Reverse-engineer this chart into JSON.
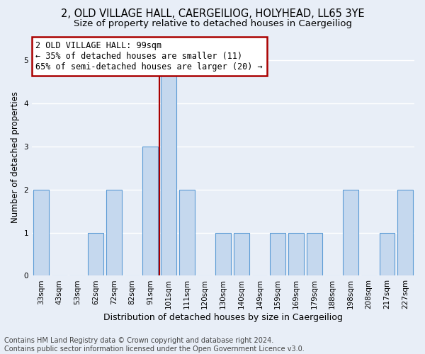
{
  "title1": "2, OLD VILLAGE HALL, CAERGEILIOG, HOLYHEAD, LL65 3YE",
  "title2": "Size of property relative to detached houses in Caergeiliog",
  "xlabel": "Distribution of detached houses by size in Caergeiliog",
  "ylabel": "Number of detached properties",
  "footnote": "Contains HM Land Registry data © Crown copyright and database right 2024.\nContains public sector information licensed under the Open Government Licence v3.0.",
  "categories": [
    "33sqm",
    "43sqm",
    "53sqm",
    "62sqm",
    "72sqm",
    "82sqm",
    "91sqm",
    "101sqm",
    "111sqm",
    "120sqm",
    "130sqm",
    "140sqm",
    "149sqm",
    "159sqm",
    "169sqm",
    "179sqm",
    "188sqm",
    "198sqm",
    "208sqm",
    "217sqm",
    "227sqm"
  ],
  "values": [
    2,
    0,
    0,
    1,
    2,
    0,
    3,
    5,
    2,
    0,
    1,
    1,
    0,
    1,
    1,
    1,
    0,
    2,
    0,
    1,
    2
  ],
  "highlight_index": 7,
  "bar_color": "#c5d8ee",
  "bar_edge_color": "#5b9bd5",
  "highlight_line_color": "#aa0000",
  "annotation_box_color": "#aa0000",
  "annotation_text": "2 OLD VILLAGE HALL: 99sqm\n← 35% of detached houses are smaller (11)\n65% of semi-detached houses are larger (20) →",
  "ylim": [
    0,
    5.5
  ],
  "yticks": [
    0,
    1,
    2,
    3,
    4,
    5
  ],
  "background_color": "#e8eef7",
  "grid_color": "#ffffff",
  "title1_fontsize": 10.5,
  "title2_fontsize": 9.5,
  "xlabel_fontsize": 9,
  "ylabel_fontsize": 8.5,
  "tick_fontsize": 7.5,
  "annotation_fontsize": 8.5,
  "footnote_fontsize": 7
}
